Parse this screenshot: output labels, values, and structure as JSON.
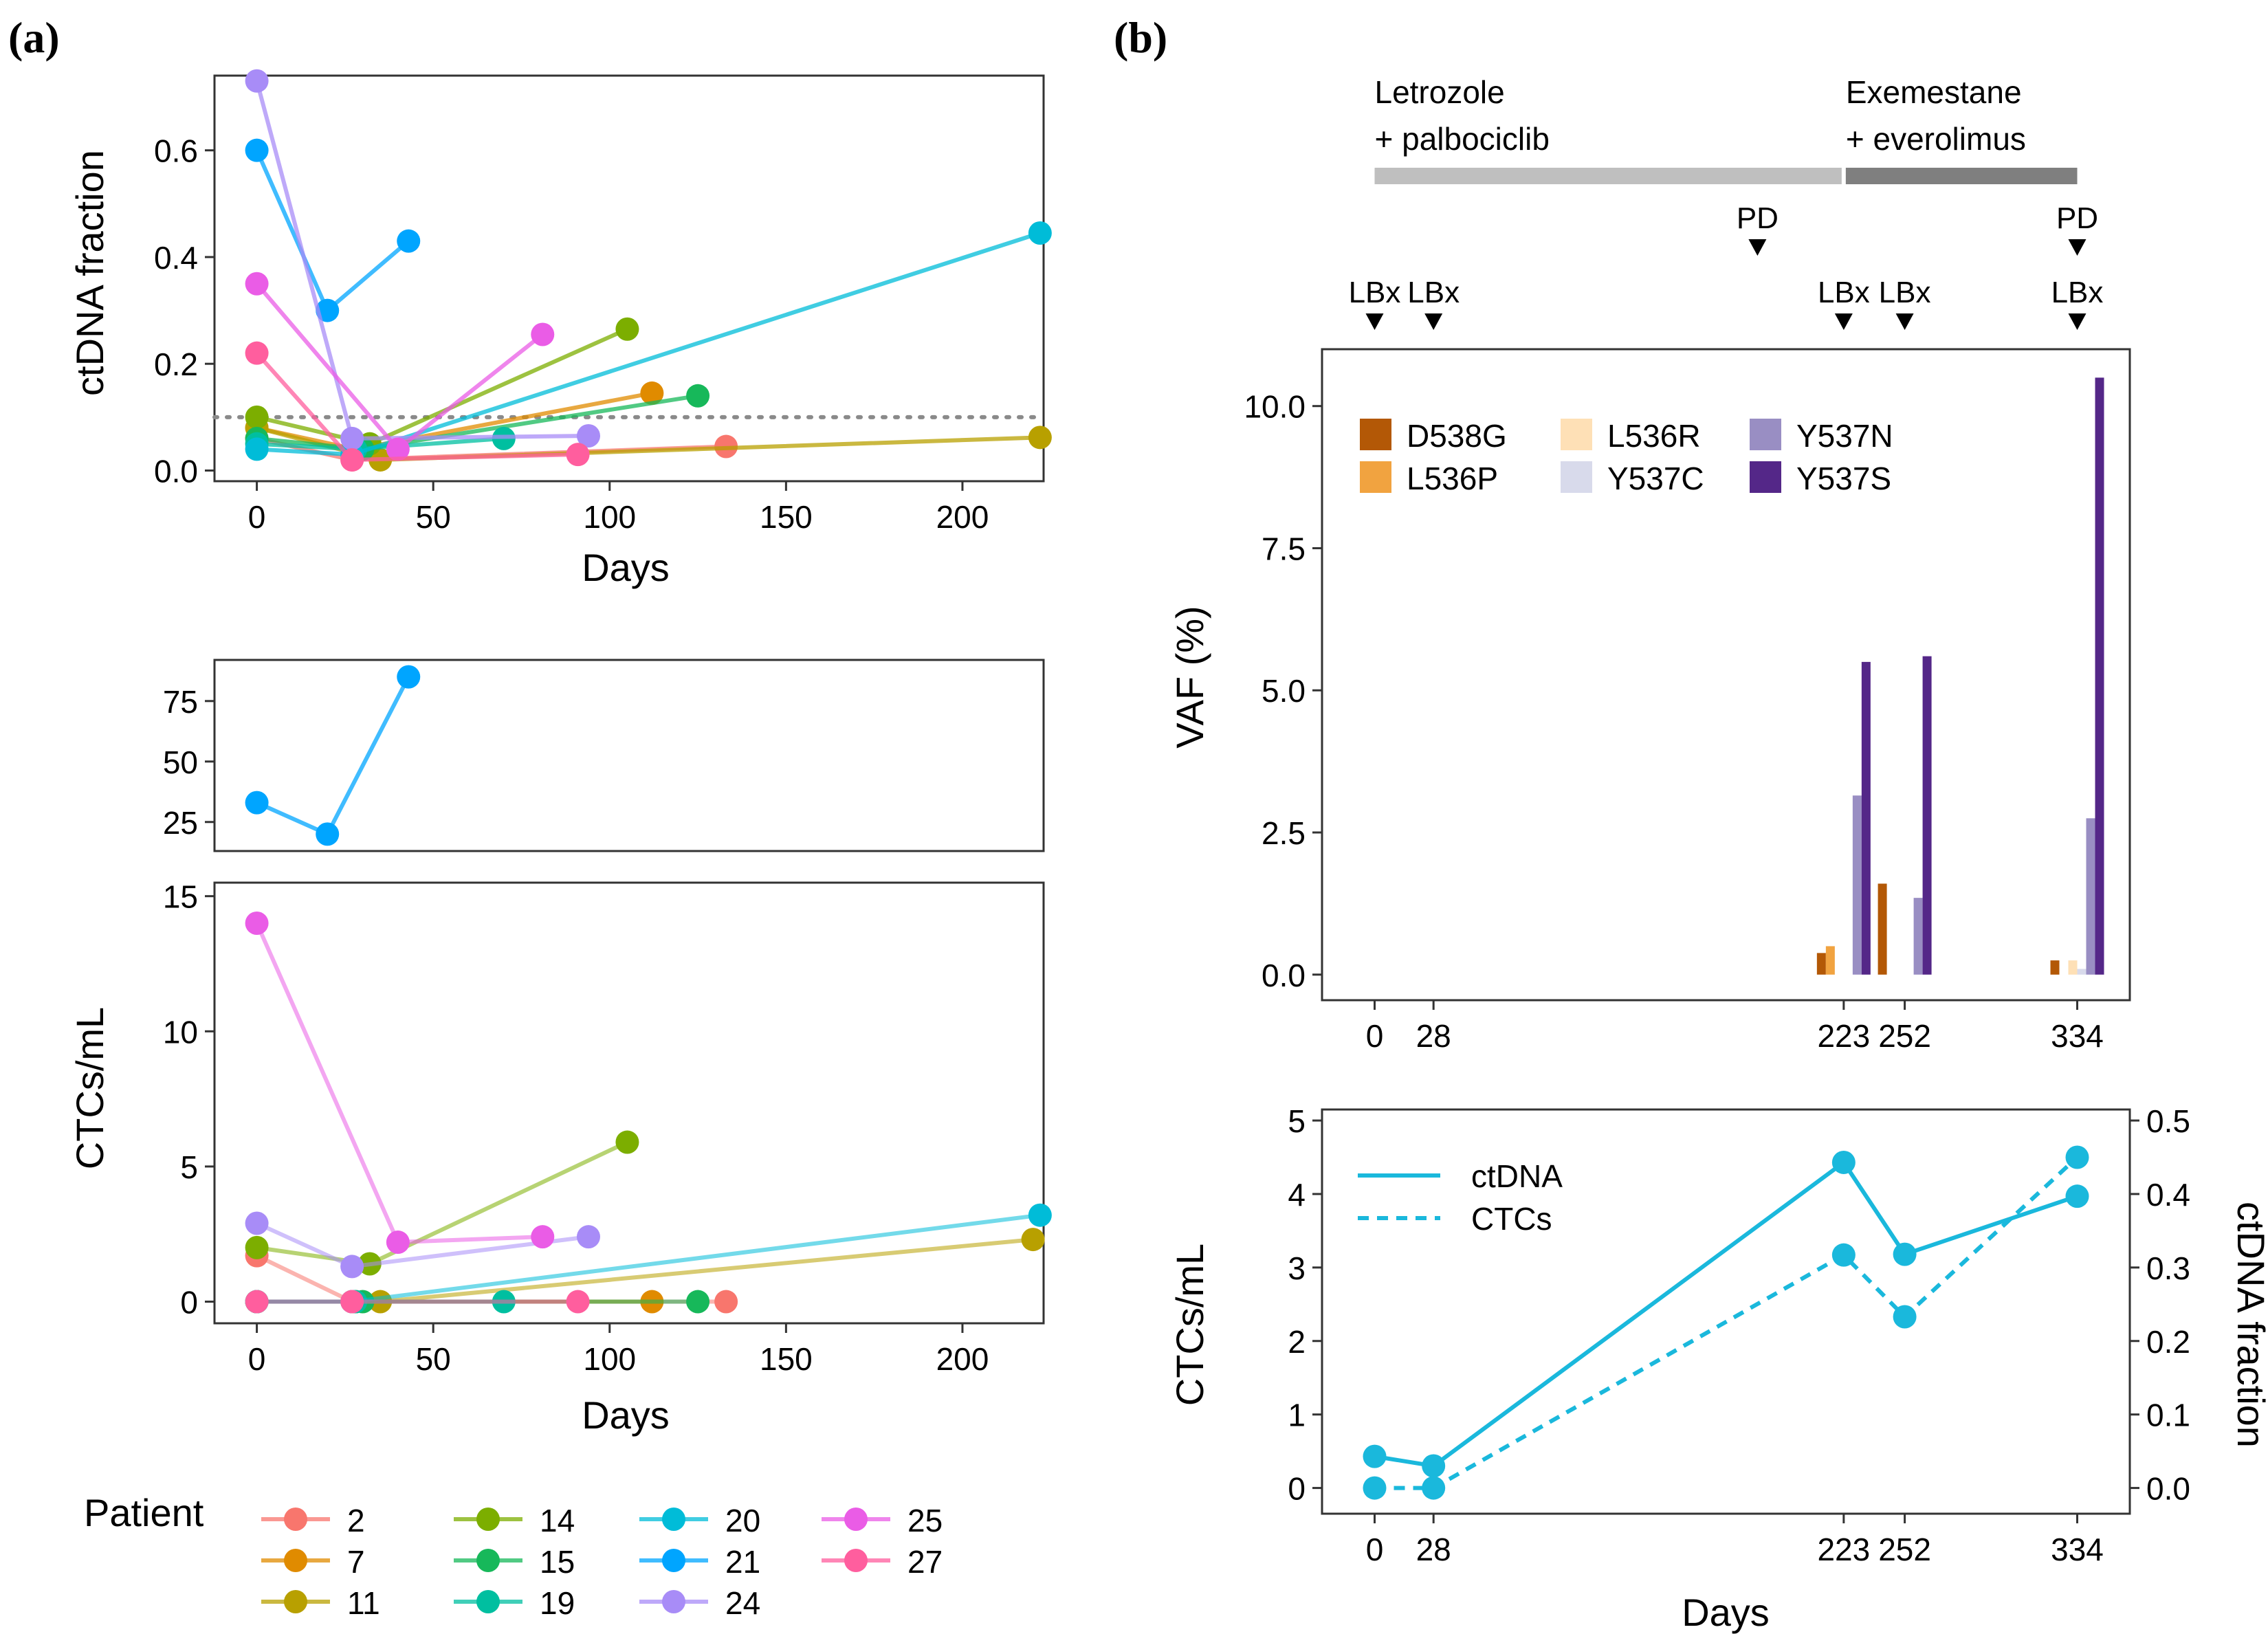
{
  "panel_labels": {
    "a": "(a)",
    "b": "(b)"
  },
  "legend": {
    "title": "Patient"
  },
  "patients": [
    {
      "id": "2",
      "color": "#F8766D"
    },
    {
      "id": "7",
      "color": "#E08B00"
    },
    {
      "id": "11",
      "color": "#B8A000"
    },
    {
      "id": "14",
      "color": "#7CAE00"
    },
    {
      "id": "15",
      "color": "#17B85A"
    },
    {
      "id": "19",
      "color": "#00BFA0"
    },
    {
      "id": "20",
      "color": "#00BCD8"
    },
    {
      "id": "21",
      "color": "#00A5FF"
    },
    {
      "id": "24",
      "color": "#A88CF7"
    },
    {
      "id": "25",
      "color": "#EA5CE6"
    },
    {
      "id": "27",
      "color": "#FF5E9E"
    }
  ],
  "chart_data": [
    {
      "id": "a_ctdna",
      "type": "line",
      "xlabel": "Days",
      "ylabel": "ctDNA fraction",
      "xlim": [
        -12,
        223
      ],
      "ylim": [
        -0.02,
        0.74
      ],
      "xticks": [
        0,
        50,
        100,
        150,
        200
      ],
      "yticks": [
        0.0,
        0.2,
        0.4,
        0.6
      ],
      "ytick_labels": [
        "0.0",
        "0.2",
        "0.4",
        "0.6"
      ],
      "threshold": 0.1,
      "series": [
        {
          "name": "2",
          "x": [
            0,
            27,
            133
          ],
          "y": [
            0.06,
            0.02,
            0.045
          ]
        },
        {
          "name": "7",
          "x": [
            0,
            28,
            112
          ],
          "y": [
            0.08,
            0.04,
            0.145
          ]
        },
        {
          "name": "11",
          "x": [
            0,
            35,
            222
          ],
          "y": [
            0.08,
            0.02,
            0.062
          ]
        },
        {
          "name": "14",
          "x": [
            0,
            32,
            105
          ],
          "y": [
            0.1,
            0.05,
            0.265
          ]
        },
        {
          "name": "15",
          "x": [
            0,
            30,
            125
          ],
          "y": [
            0.06,
            0.04,
            0.14
          ]
        },
        {
          "name": "19",
          "x": [
            0,
            28,
            70
          ],
          "y": [
            0.05,
            0.04,
            0.06
          ]
        },
        {
          "name": "20",
          "x": [
            0,
            27,
            222
          ],
          "y": [
            0.04,
            0.03,
            0.445
          ]
        },
        {
          "name": "21",
          "x": [
            0,
            20,
            43
          ],
          "y": [
            0.6,
            0.3,
            0.43
          ]
        },
        {
          "name": "24",
          "x": [
            0,
            27,
            94
          ],
          "y": [
            0.73,
            0.06,
            0.065
          ]
        },
        {
          "name": "25",
          "x": [
            0,
            40,
            81
          ],
          "y": [
            0.35,
            0.04,
            0.255
          ]
        },
        {
          "name": "27",
          "x": [
            0,
            27,
            91
          ],
          "y": [
            0.22,
            0.02,
            0.03
          ]
        }
      ]
    },
    {
      "id": "a_ctc_upper",
      "type": "line",
      "xlim": [
        -12,
        223
      ],
      "ylim": [
        13,
        92
      ],
      "yticks": [
        25,
        50,
        75
      ],
      "ytick_labels": [
        "25",
        "50",
        "75"
      ],
      "series": [
        {
          "name": "21",
          "x": [
            0,
            20,
            43
          ],
          "y": [
            33,
            20,
            85
          ]
        }
      ]
    },
    {
      "id": "a_ctc_lower",
      "type": "line",
      "xlabel": "Days",
      "ylabel": "CTCs/mL",
      "xlim": [
        -12,
        223
      ],
      "ylim": [
        -0.8,
        15.5
      ],
      "xticks": [
        0,
        50,
        100,
        150,
        200
      ],
      "yticks": [
        0,
        5,
        10,
        15
      ],
      "ytick_labels": [
        "0",
        "5",
        "10",
        "15"
      ],
      "series": [
        {
          "name": "2",
          "x": [
            0,
            27,
            133
          ],
          "y": [
            1.7,
            0,
            0
          ]
        },
        {
          "name": "7",
          "x": [
            0,
            28,
            112
          ],
          "y": [
            0,
            0,
            0
          ]
        },
        {
          "name": "11",
          "x": [
            0,
            35,
            220
          ],
          "y": [
            0,
            0,
            2.3
          ]
        },
        {
          "name": "14",
          "x": [
            0,
            32,
            105
          ],
          "y": [
            2,
            1.4,
            5.9
          ]
        },
        {
          "name": "15",
          "x": [
            0,
            30,
            125
          ],
          "y": [
            0,
            0,
            0
          ]
        },
        {
          "name": "19",
          "x": [
            0,
            28,
            70
          ],
          "y": [
            0,
            0,
            0
          ]
        },
        {
          "name": "20",
          "x": [
            0,
            27,
            222
          ],
          "y": [
            0,
            0,
            3.2
          ]
        },
        {
          "name": "24",
          "x": [
            0,
            27,
            94
          ],
          "y": [
            2.9,
            1.3,
            2.4
          ]
        },
        {
          "name": "25",
          "x": [
            0,
            40,
            81
          ],
          "y": [
            14,
            2.2,
            2.4
          ]
        },
        {
          "name": "27",
          "x": [
            0,
            27,
            91
          ],
          "y": [
            0,
            0,
            0
          ]
        }
      ]
    },
    {
      "id": "b_vaf",
      "type": "bar",
      "ylabel": "VAF (%)",
      "xlim": [
        -25,
        359
      ],
      "ylim": [
        -0.45,
        11
      ],
      "yticks": [
        0.0,
        2.5,
        5.0,
        7.5,
        10.0
      ],
      "ytick_labels": [
        "0.0",
        "2.5",
        "5.0",
        "7.5",
        "10.0"
      ],
      "xticks": [
        0,
        28,
        223,
        252,
        334
      ],
      "xtick_labels": [
        "0",
        "28",
        "223",
        "252",
        "334"
      ],
      "treatments": [
        {
          "line1": "Letrozole",
          "line2": "+ palbociclib",
          "start": 0,
          "end": 223,
          "color": "#bfbfbf"
        },
        {
          "line1": "Exemestane",
          "line2": "+ everolimus",
          "start": 223,
          "end": 334,
          "color": "#7f7f7f"
        }
      ],
      "pd_days": [
        182,
        334
      ],
      "pd_label": "PD",
      "lbx_days": [
        0,
        28,
        223,
        252,
        334
      ],
      "lbx_label": "LBx",
      "categories": [
        "223",
        "252",
        "334"
      ],
      "series": [
        {
          "name": "D538G",
          "color": "#b35806",
          "values": [
            0.38,
            1.6,
            0.25
          ]
        },
        {
          "name": "L536P",
          "color": "#f1a340",
          "values": [
            0.5,
            0,
            0
          ]
        },
        {
          "name": "L536R",
          "color": "#fee0b6",
          "values": [
            0,
            0,
            0.25
          ]
        },
        {
          "name": "Y537C",
          "color": "#d8daeb",
          "values": [
            0,
            0,
            0.1
          ]
        },
        {
          "name": "Y537N",
          "color": "#998ec3",
          "values": [
            3.15,
            1.35,
            2.75
          ]
        },
        {
          "name": "Y537S",
          "color": "#542788",
          "values": [
            5.5,
            5.6,
            10.5
          ]
        }
      ]
    },
    {
      "id": "b_ctc",
      "type": "line",
      "xlabel": "Days",
      "ylabel": "CTCs/mL",
      "ylabel_right": "ctDNA fraction",
      "xlim": [
        -25,
        359
      ],
      "ylim": [
        -0.35,
        5.15
      ],
      "ylim_right": [
        -0.035,
        0.515
      ],
      "yticks": [
        0,
        1,
        2,
        3,
        4,
        5
      ],
      "ytick_labels": [
        "0",
        "1",
        "2",
        "3",
        "4",
        "5"
      ],
      "yticks_right": [
        0.0,
        0.1,
        0.2,
        0.3,
        0.4,
        0.5
      ],
      "ytick_labels_right": [
        "0.0",
        "0.1",
        "0.2",
        "0.3",
        "0.4",
        "0.5"
      ],
      "xticks": [
        0,
        28,
        223,
        252,
        334
      ],
      "xtick_labels": [
        "0",
        "28",
        "223",
        "252",
        "334"
      ],
      "color": "#1ab8dc",
      "series": [
        {
          "name": "ctDNA",
          "axis": "right",
          "dash": "solid",
          "x": [
            0,
            28,
            223,
            252,
            334
          ],
          "y": [
            0.043,
            0.03,
            0.443,
            0.318,
            0.397
          ]
        },
        {
          "name": "CTCs",
          "axis": "left",
          "dash": "dashed",
          "x": [
            0,
            28,
            223,
            252,
            334
          ],
          "y": [
            0,
            0,
            3.17,
            2.33,
            4.5
          ]
        }
      ]
    }
  ]
}
